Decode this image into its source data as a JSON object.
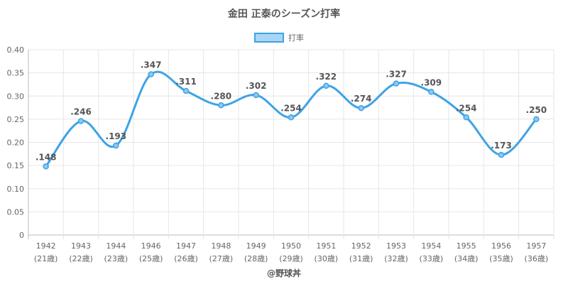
{
  "chart_data": {
    "type": "line",
    "title": "金田 正泰のシーズン打率",
    "legend": {
      "label": "打率",
      "placement": "top"
    },
    "categories": [
      "1942",
      "1943",
      "1944",
      "1946",
      "1947",
      "1948",
      "1949",
      "1950",
      "1951",
      "1952",
      "1953",
      "1954",
      "1955",
      "1956",
      "1957"
    ],
    "category_sublabels": [
      "(21歳)",
      "(22歳)",
      "(23歳)",
      "(25歳)",
      "(26歳)",
      "(27歳)",
      "(28歳)",
      "(29歳)",
      "(30歳)",
      "(31歳)",
      "(32歳)",
      "(33歳)",
      "(34歳)",
      "(35歳)",
      "(36歳)"
    ],
    "series": [
      {
        "name": "打率",
        "values": [
          0.148,
          0.246,
          0.193,
          0.347,
          0.311,
          0.28,
          0.302,
          0.254,
          0.322,
          0.274,
          0.327,
          0.309,
          0.254,
          0.173,
          0.25
        ],
        "data_labels": [
          ".148",
          ".246",
          ".193",
          ".347",
          ".311",
          ".280",
          ".302",
          ".254",
          ".322",
          ".274",
          ".327",
          ".309",
          ".254",
          ".173",
          ".250"
        ]
      }
    ],
    "ylim": [
      0,
      0.4
    ],
    "yticks": [
      "0",
      "0.05",
      "0.10",
      "0.15",
      "0.20",
      "0.25",
      "0.30",
      "0.35",
      "0.40"
    ],
    "grid": true,
    "line_color": "#3ea3e6",
    "point_fill": "#8ec8f0"
  },
  "credit": "@野球丼"
}
